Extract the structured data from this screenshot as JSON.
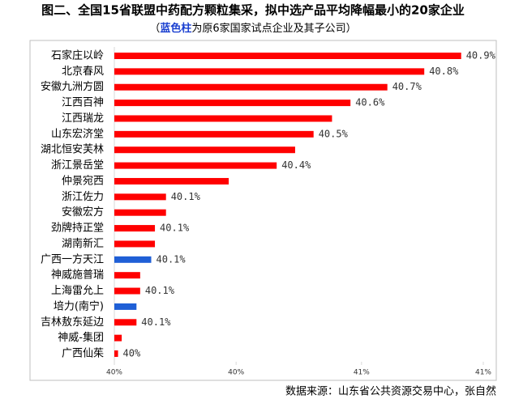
{
  "chart_data": {
    "type": "barh",
    "title": "图二、全国15省联盟中药配方颗粒集采，拟中选产品平均降幅最小的20家企业",
    "subtitle_open": "（",
    "subtitle_highlight": "蓝色柱",
    "subtitle_rest": "为原6家国家试点企业及其子公司）",
    "source": "数据来源：山东省公共资源交易中心，张自然",
    "categories": [
      "石家庄以岭",
      "北京春风",
      "安徽九洲方圆",
      "江西百神",
      "江西瑞龙",
      "山东宏济堂",
      "湖北恒安芙林",
      "浙江景岳堂",
      "仲景宛西",
      "浙江佐力",
      "安徽宏方",
      "劲牌持正堂",
      "湖南新汇",
      "广西一方天江",
      "神威施普瑞",
      "上海雷允上",
      "培力(南宁)",
      "吉林敖东延边",
      "神威-集团",
      "广西仙茱"
    ],
    "values": [
      40.94,
      40.84,
      40.74,
      40.64,
      40.59,
      40.54,
      40.49,
      40.44,
      40.31,
      40.14,
      40.14,
      40.11,
      40.11,
      40.1,
      40.07,
      40.07,
      40.06,
      40.06,
      40.02,
      40.01
    ],
    "value_labels": [
      "40.9%",
      "40.8%",
      "40.7%",
      "40.6%",
      null,
      "40.5%",
      null,
      "40.4%",
      null,
      "40.1%",
      null,
      "40.1%",
      null,
      "40.1%",
      null,
      "40.1%",
      null,
      "40.1%",
      null,
      "40%"
    ],
    "colors": [
      "#ff0000",
      "#ff0000",
      "#ff0000",
      "#ff0000",
      "#ff0000",
      "#ff0000",
      "#ff0000",
      "#ff0000",
      "#ff0000",
      "#ff0000",
      "#ff0000",
      "#ff0000",
      "#ff0000",
      "#1f5fd6",
      "#ff0000",
      "#ff0000",
      "#1f5fd6",
      "#ff0000",
      "#ff0000",
      "#ff0000"
    ],
    "highlight_color": "#1a3fd0",
    "xlim": [
      40,
      41
    ],
    "xticks": [
      {
        "value": 40,
        "label": "40%"
      },
      {
        "value": 40.33,
        "label": "40%"
      },
      {
        "value": 40.67,
        "label": "41%"
      },
      {
        "value": 41,
        "label": "41%"
      }
    ]
  }
}
